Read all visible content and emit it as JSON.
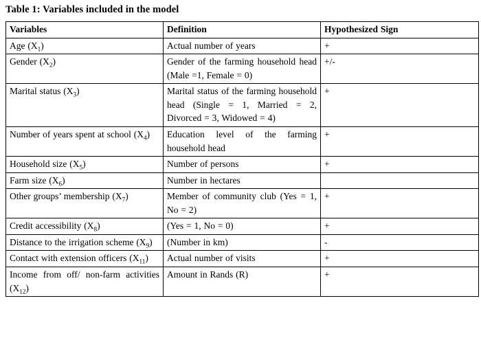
{
  "title": "Table 1: Variables included in the model",
  "table": {
    "headers": [
      "Variables",
      "Definition",
      "Hypothesized Sign"
    ],
    "rows": [
      {
        "variable": {
          "pre": "Age (X",
          "sub": "1",
          "post": ")"
        },
        "definition": "Actual number of years",
        "sign": "+"
      },
      {
        "variable": {
          "pre": "Gender (X",
          "sub": "2",
          "post": ")"
        },
        "definition": "Gender of the farming household head (Male =1, Female = 0)",
        "sign": "+/-"
      },
      {
        "variable": {
          "pre": "Marital status (X",
          "sub": "3",
          "post": ")"
        },
        "definition": "Marital status of the farming household head (Single = 1, Married = 2, Divorced = 3, Widowed = 4)",
        "sign": "+"
      },
      {
        "variable": {
          "pre": "Number of years spent at school (X",
          "sub": "4",
          "post": ")"
        },
        "definition": "Education level of the farming household head",
        "sign": "+"
      },
      {
        "variable": {
          "pre": "Household size (X",
          "sub": "5",
          "post": ")"
        },
        "definition": "Number of persons",
        "sign": "+"
      },
      {
        "variable": {
          "pre": "Farm size (X",
          "sub": "6",
          "post": ")"
        },
        "definition": "Number in hectares",
        "sign": ""
      },
      {
        "variable": {
          "pre": "Other groups’ membership (X",
          "sub": "7",
          "post": ")"
        },
        "definition": "Member of community club (Yes = 1, No = 2)",
        "sign": "+"
      },
      {
        "variable": {
          "pre": "Credit accessibility (X",
          "sub": "8",
          "post": ")"
        },
        "definition": "(Yes = 1, No = 0)",
        "sign": "+"
      },
      {
        "variable": {
          "pre": "Distance to the irrigation scheme (X",
          "sub": "9",
          "post": ")"
        },
        "definition": "(Number in km)",
        "sign": "-"
      },
      {
        "variable": {
          "pre": "Contact with extension officers (X",
          "sub": "11",
          "post": ")"
        },
        "definition": "Actual number of visits",
        "sign": "+"
      },
      {
        "variable": {
          "pre": "Income from off/ non-farm activities (X",
          "sub": "12",
          "post": ")"
        },
        "definition": "Amount in Rands (R)",
        "sign": "+"
      }
    ]
  }
}
